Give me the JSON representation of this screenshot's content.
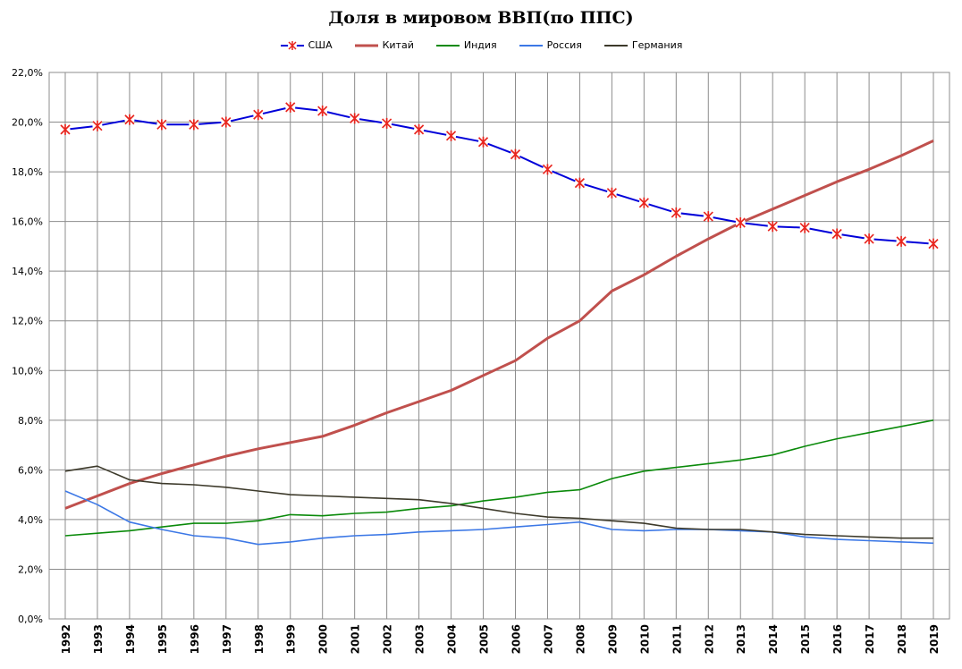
{
  "chart_data": {
    "type": "line",
    "title": "Доля в мировом ВВП(по ППС)",
    "xlabel": "",
    "ylabel": "",
    "ylim": [
      0,
      22
    ],
    "y_tick_labels": [
      "0,0%",
      "2,0%",
      "4,0%",
      "6,0%",
      "8,0%",
      "10,0%",
      "12,0%",
      "14,0%",
      "16,0%",
      "18,0%",
      "20,0%",
      "22,0%"
    ],
    "legend_position": "top",
    "grid": true,
    "categories": [
      "1992",
      "1993",
      "1994",
      "1995",
      "1996",
      "1997",
      "1998",
      "1999",
      "2000",
      "2001",
      "2002",
      "2003",
      "2004",
      "2005",
      "2006",
      "2007",
      "2008",
      "2009",
      "2010",
      "2011",
      "2012",
      "2013",
      "2014",
      "2015",
      "2016",
      "2017",
      "2018",
      "2019"
    ],
    "series": [
      {
        "name": "США",
        "color": "#0000d9",
        "marker": "star",
        "values": [
          19.7,
          19.85,
          20.1,
          19.9,
          19.9,
          20.0,
          20.3,
          20.6,
          20.45,
          20.15,
          19.95,
          19.7,
          19.45,
          19.2,
          18.7,
          18.1,
          17.55,
          17.15,
          16.75,
          16.35,
          16.2,
          15.95,
          15.8,
          15.75,
          15.5,
          15.3,
          15.2,
          15.1
        ]
      },
      {
        "name": "Китай",
        "color": "#c0504d",
        "values": [
          4.45,
          4.95,
          5.45,
          5.85,
          6.2,
          6.55,
          6.85,
          7.1,
          7.35,
          7.8,
          8.3,
          8.75,
          9.2,
          9.8,
          10.4,
          11.3,
          12.0,
          13.2,
          13.85,
          14.6,
          15.3,
          15.95,
          16.5,
          17.05,
          17.6,
          18.1,
          18.65,
          19.25
        ]
      },
      {
        "name": "Индия",
        "color": "#0a8a0a",
        "values": [
          3.35,
          3.45,
          3.55,
          3.7,
          3.85,
          3.85,
          3.95,
          4.2,
          4.15,
          4.25,
          4.3,
          4.45,
          4.55,
          4.75,
          4.9,
          5.1,
          5.2,
          5.65,
          5.95,
          6.1,
          6.25,
          6.4,
          6.6,
          6.95,
          7.25,
          7.5,
          7.75,
          8.0
        ]
      },
      {
        "name": "Россия",
        "color": "#3c78e6",
        "values": [
          5.15,
          4.6,
          3.9,
          3.6,
          3.35,
          3.25,
          3.0,
          3.1,
          3.25,
          3.35,
          3.4,
          3.5,
          3.55,
          3.6,
          3.7,
          3.8,
          3.9,
          3.6,
          3.55,
          3.6,
          3.6,
          3.55,
          3.5,
          3.3,
          3.2,
          3.15,
          3.1,
          3.05
        ]
      },
      {
        "name": "Германия",
        "color": "#3d3a2b",
        "values": [
          5.95,
          6.15,
          5.6,
          5.45,
          5.4,
          5.3,
          5.15,
          5.0,
          4.95,
          4.9,
          4.85,
          4.8,
          4.65,
          4.45,
          4.25,
          4.1,
          4.05,
          3.95,
          3.85,
          3.65,
          3.6,
          3.6,
          3.5,
          3.4,
          3.35,
          3.3,
          3.25,
          3.25
        ]
      }
    ]
  }
}
